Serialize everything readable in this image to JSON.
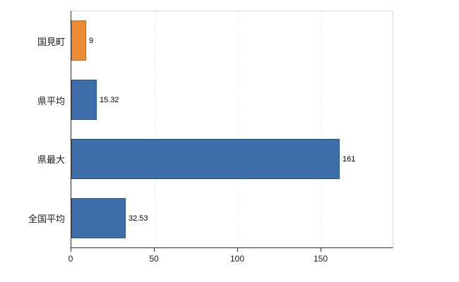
{
  "chart_data": {
    "type": "bar",
    "orientation": "horizontal",
    "title": "",
    "categories": [
      "国見町",
      "県平均",
      "県最大",
      "全国平均"
    ],
    "values": [
      9,
      15.32,
      161,
      32.53
    ],
    "value_labels": [
      "9",
      "15.32",
      "161",
      "32.53"
    ],
    "series": [
      {
        "name": "値",
        "values": [
          9,
          15.32,
          161,
          32.53
        ]
      }
    ],
    "bar_colors": [
      "#ed8b35",
      "#3d6ea9",
      "#3d6ea9",
      "#3d6ea9"
    ],
    "x_ticks": [
      0,
      50,
      100,
      150
    ],
    "x_tick_labels": [
      "0",
      "50",
      "100",
      "150"
    ],
    "xlim": [
      0,
      193
    ],
    "xlabel": "",
    "ylabel": "",
    "grid": true,
    "legend": "none",
    "colors": {
      "background": "#ffffff",
      "axis": "#2b2b2b",
      "plot_border": "#d9d9d9",
      "gridline": "#ededed",
      "highlight_bar": "#ed8b35",
      "default_bar": "#3d6ea9"
    }
  }
}
